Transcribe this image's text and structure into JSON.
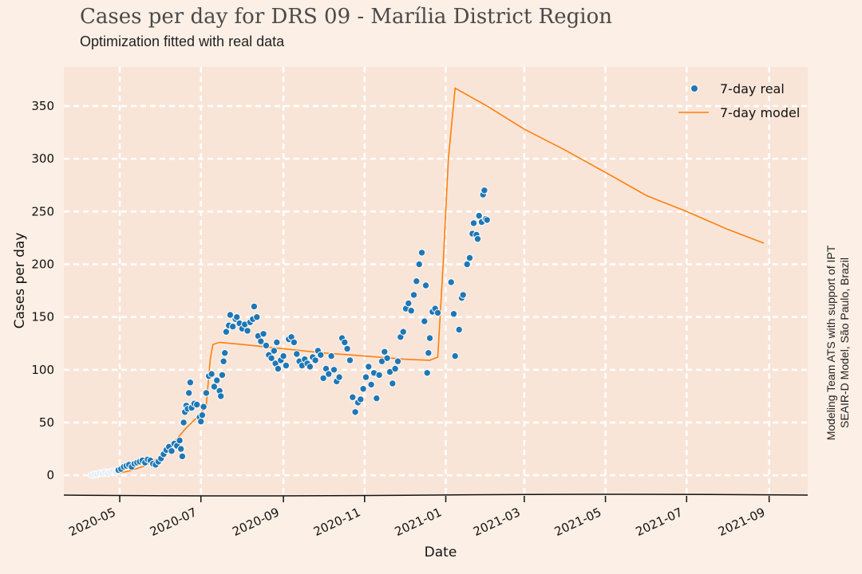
{
  "header": {
    "title": "Cases per day for DRS 09 - Marília District Region",
    "subtitle": "Optimization fitted with real data"
  },
  "credit": {
    "line1": "Modeling Team ATS with support of IPT",
    "line2": "SEAIR-D Model, São Paulo, Brazil"
  },
  "colors": {
    "background": "#fcefe5",
    "plot_background": "#f9e5d8",
    "grid": "#ffffff",
    "real": "#1f77b4",
    "model": "#ff7f0e"
  },
  "chart_data": {
    "type": "line",
    "xlabel": "Date",
    "ylabel": "Cases per day",
    "xlim": [
      "2020-03-20",
      "2021-09-30"
    ],
    "ylim": [
      -18,
      387
    ],
    "yticks": [
      0,
      50,
      100,
      150,
      200,
      250,
      300,
      350
    ],
    "xticks": [
      "2020-05-01",
      "2020-07-01",
      "2020-09-01",
      "2020-11-01",
      "2021-01-01",
      "2021-03-01",
      "2021-05-01",
      "2021-07-01",
      "2021-09-01"
    ],
    "xtick_labels": [
      "2020-05",
      "2020-07",
      "2020-09",
      "2020-11",
      "2021-01",
      "2021-03",
      "2021-05",
      "2021-07",
      "2021-09"
    ],
    "grid": true,
    "legend_position": "top-right",
    "series": [
      {
        "name": "7-day real",
        "kind": "scatter",
        "points": [
          [
            "2020-04-10",
            0
          ],
          [
            "2020-04-12",
            1
          ],
          [
            "2020-04-14",
            1
          ],
          [
            "2020-04-16",
            2
          ],
          [
            "2020-04-18",
            2
          ],
          [
            "2020-04-20",
            3
          ],
          [
            "2020-04-22",
            2
          ],
          [
            "2020-04-24",
            3
          ],
          [
            "2020-04-26",
            4
          ],
          [
            "2020-04-28",
            3
          ],
          [
            "2020-04-30",
            5
          ],
          [
            "2020-05-02",
            6
          ],
          [
            "2020-05-04",
            8
          ],
          [
            "2020-05-06",
            9
          ],
          [
            "2020-05-08",
            10
          ],
          [
            "2020-05-10",
            8
          ],
          [
            "2020-05-12",
            11
          ],
          [
            "2020-05-14",
            12
          ],
          [
            "2020-05-16",
            13
          ],
          [
            "2020-05-18",
            14
          ],
          [
            "2020-05-20",
            12
          ],
          [
            "2020-05-22",
            15
          ],
          [
            "2020-05-24",
            14
          ],
          [
            "2020-05-26",
            11
          ],
          [
            "2020-05-28",
            10
          ],
          [
            "2020-05-30",
            13
          ],
          [
            "2020-06-01",
            16
          ],
          [
            "2020-06-03",
            20
          ],
          [
            "2020-06-05",
            24
          ],
          [
            "2020-06-07",
            27
          ],
          [
            "2020-06-09",
            23
          ],
          [
            "2020-06-11",
            30
          ],
          [
            "2020-06-13",
            28
          ],
          [
            "2020-06-15",
            33
          ],
          [
            "2020-06-16",
            25
          ],
          [
            "2020-06-17",
            18
          ],
          [
            "2020-06-18",
            50
          ],
          [
            "2020-06-19",
            60
          ],
          [
            "2020-06-20",
            66
          ],
          [
            "2020-06-21",
            63
          ],
          [
            "2020-06-22",
            78
          ],
          [
            "2020-06-23",
            88
          ],
          [
            "2020-06-24",
            64
          ],
          [
            "2020-06-26",
            68
          ],
          [
            "2020-06-28",
            67
          ],
          [
            "2020-06-30",
            55
          ],
          [
            "2020-07-01",
            51
          ],
          [
            "2020-07-02",
            57
          ],
          [
            "2020-07-03",
            65
          ],
          [
            "2020-07-05",
            78
          ],
          [
            "2020-07-07",
            94
          ],
          [
            "2020-07-09",
            96
          ],
          [
            "2020-07-11",
            84
          ],
          [
            "2020-07-13",
            90
          ],
          [
            "2020-07-15",
            80
          ],
          [
            "2020-07-16",
            75
          ],
          [
            "2020-07-17",
            95
          ],
          [
            "2020-07-18",
            108
          ],
          [
            "2020-07-19",
            116
          ],
          [
            "2020-07-20",
            136
          ],
          [
            "2020-07-22",
            142
          ],
          [
            "2020-07-23",
            152
          ],
          [
            "2020-07-25",
            141
          ],
          [
            "2020-07-27",
            148
          ],
          [
            "2020-07-28",
            150
          ],
          [
            "2020-07-30",
            144
          ],
          [
            "2020-08-01",
            139
          ],
          [
            "2020-08-03",
            143
          ],
          [
            "2020-08-05",
            137
          ],
          [
            "2020-08-07",
            145
          ],
          [
            "2020-08-09",
            148
          ],
          [
            "2020-08-10",
            160
          ],
          [
            "2020-08-12",
            150
          ],
          [
            "2020-08-13",
            132
          ],
          [
            "2020-08-15",
            127
          ],
          [
            "2020-08-17",
            134
          ],
          [
            "2020-08-19",
            123
          ],
          [
            "2020-08-21",
            114
          ],
          [
            "2020-08-23",
            111
          ],
          [
            "2020-08-25",
            118
          ],
          [
            "2020-08-26",
            106
          ],
          [
            "2020-08-27",
            126
          ],
          [
            "2020-08-28",
            101
          ],
          [
            "2020-08-30",
            109
          ],
          [
            "2020-09-01",
            113
          ],
          [
            "2020-09-03",
            104
          ],
          [
            "2020-09-05",
            129
          ],
          [
            "2020-09-07",
            131
          ],
          [
            "2020-09-09",
            126
          ],
          [
            "2020-09-11",
            115
          ],
          [
            "2020-09-13",
            108
          ],
          [
            "2020-09-15",
            104
          ],
          [
            "2020-09-17",
            110
          ],
          [
            "2020-09-19",
            106
          ],
          [
            "2020-09-21",
            103
          ],
          [
            "2020-09-23",
            112
          ],
          [
            "2020-09-25",
            109
          ],
          [
            "2020-09-27",
            118
          ],
          [
            "2020-09-29",
            114
          ],
          [
            "2020-10-01",
            92
          ],
          [
            "2020-10-03",
            101
          ],
          [
            "2020-10-05",
            96
          ],
          [
            "2020-10-07",
            113
          ],
          [
            "2020-10-09",
            100
          ],
          [
            "2020-10-11",
            89
          ],
          [
            "2020-10-13",
            93
          ],
          [
            "2020-10-15",
            130
          ],
          [
            "2020-10-17",
            126
          ],
          [
            "2020-10-19",
            120
          ],
          [
            "2020-10-21",
            109
          ],
          [
            "2020-10-23",
            74
          ],
          [
            "2020-10-25",
            60
          ],
          [
            "2020-10-27",
            69
          ],
          [
            "2020-10-29",
            72
          ],
          [
            "2020-10-31",
            82
          ],
          [
            "2020-11-02",
            93
          ],
          [
            "2020-11-04",
            103
          ],
          [
            "2020-11-06",
            86
          ],
          [
            "2020-11-08",
            97
          ],
          [
            "2020-11-10",
            73
          ],
          [
            "2020-11-12",
            95
          ],
          [
            "2020-11-14",
            108
          ],
          [
            "2020-11-16",
            117
          ],
          [
            "2020-11-18",
            111
          ],
          [
            "2020-11-20",
            98
          ],
          [
            "2020-11-22",
            87
          ],
          [
            "2020-11-24",
            101
          ],
          [
            "2020-11-26",
            108
          ],
          [
            "2020-11-28",
            131
          ],
          [
            "2020-11-30",
            136
          ],
          [
            "2020-12-02",
            158
          ],
          [
            "2020-12-04",
            163
          ],
          [
            "2020-12-06",
            156
          ],
          [
            "2020-12-08",
            171
          ],
          [
            "2020-12-10",
            184
          ],
          [
            "2020-12-12",
            200
          ],
          [
            "2020-12-14",
            211
          ],
          [
            "2020-12-16",
            146
          ],
          [
            "2020-12-17",
            180
          ],
          [
            "2020-12-18",
            97
          ],
          [
            "2020-12-19",
            116
          ],
          [
            "2020-12-20",
            130
          ],
          [
            "2020-12-22",
            155
          ],
          [
            "2020-12-24",
            158
          ],
          [
            "2020-12-26",
            154
          ],
          [
            "2021-01-05",
            183
          ],
          [
            "2021-01-07",
            153
          ],
          [
            "2021-01-08",
            113
          ],
          [
            "2021-01-11",
            138
          ],
          [
            "2021-01-13",
            168
          ],
          [
            "2021-01-14",
            171
          ],
          [
            "2021-01-17",
            200
          ],
          [
            "2021-01-19",
            206
          ],
          [
            "2021-01-21",
            229
          ],
          [
            "2021-01-22",
            239
          ],
          [
            "2021-01-24",
            228
          ],
          [
            "2021-01-25",
            224
          ],
          [
            "2021-01-26",
            246
          ],
          [
            "2021-01-28",
            240
          ],
          [
            "2021-01-29",
            266
          ],
          [
            "2021-01-30",
            270
          ],
          [
            "2021-01-31",
            243
          ],
          [
            "2021-02-01",
            242
          ]
        ]
      },
      {
        "name": "7-day model",
        "kind": "line",
        "points": [
          [
            "2020-04-10",
            0
          ],
          [
            "2020-04-25",
            1
          ],
          [
            "2020-05-08",
            4
          ],
          [
            "2020-05-20",
            9
          ],
          [
            "2020-06-01",
            18
          ],
          [
            "2020-06-10",
            30
          ],
          [
            "2020-06-20",
            45
          ],
          [
            "2020-06-30",
            57
          ],
          [
            "2020-07-05",
            66
          ],
          [
            "2020-07-08",
            110
          ],
          [
            "2020-07-10",
            124
          ],
          [
            "2020-07-15",
            126
          ],
          [
            "2020-08-01",
            124
          ],
          [
            "2020-09-01",
            120
          ],
          [
            "2020-10-01",
            116
          ],
          [
            "2020-11-01",
            113
          ],
          [
            "2020-12-01",
            110
          ],
          [
            "2020-12-20",
            109
          ],
          [
            "2020-12-26",
            112
          ],
          [
            "2020-12-30",
            200
          ],
          [
            "2021-01-03",
            300
          ],
          [
            "2021-01-08",
            367
          ],
          [
            "2021-02-01",
            350
          ],
          [
            "2021-03-01",
            328
          ],
          [
            "2021-04-01",
            308
          ],
          [
            "2021-05-01",
            287
          ],
          [
            "2021-06-01",
            265
          ],
          [
            "2021-07-01",
            250
          ],
          [
            "2021-08-01",
            233
          ],
          [
            "2021-08-28",
            220
          ]
        ]
      }
    ]
  }
}
